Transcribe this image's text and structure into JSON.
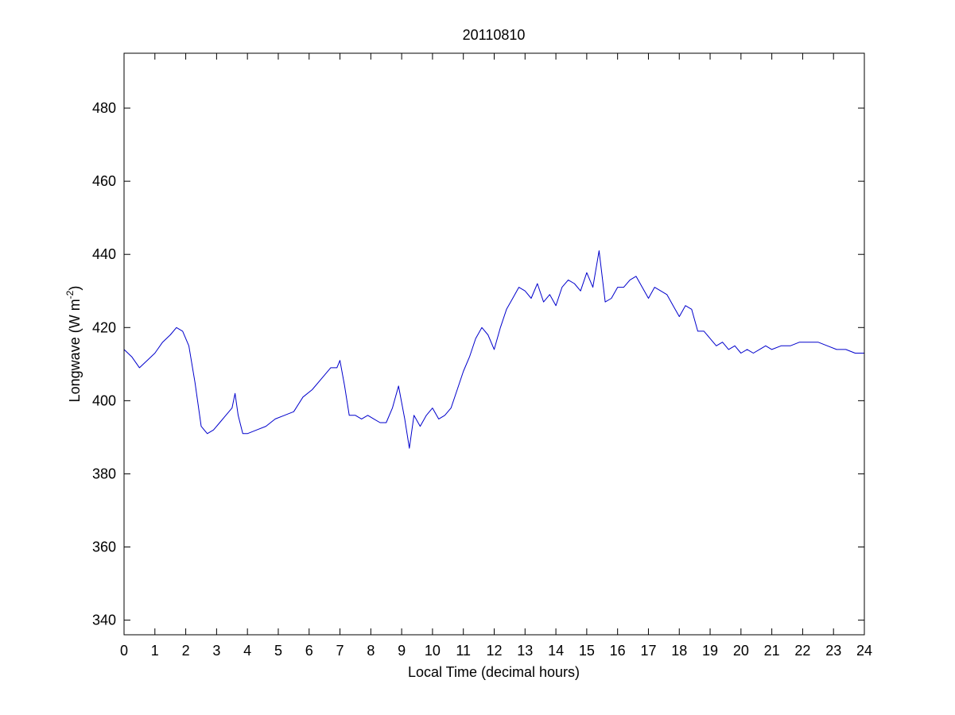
{
  "chart_data": {
    "type": "line",
    "title": "20110810",
    "xlabel": "Local Time (decimal hours)",
    "ylabel": {
      "main": "Longwave (W m",
      "superscript": "-2",
      "close": ")"
    },
    "xlim": [
      0,
      24
    ],
    "ylim": [
      336,
      495
    ],
    "xticks": [
      0,
      1,
      2,
      3,
      4,
      5,
      6,
      7,
      8,
      9,
      10,
      11,
      12,
      13,
      14,
      15,
      16,
      17,
      18,
      19,
      20,
      21,
      22,
      23,
      24
    ],
    "xtick_labels": [
      "0",
      "1",
      "2",
      "3",
      "4",
      "5",
      "6",
      "7",
      "8",
      "9",
      "10",
      "11",
      "12",
      "13",
      "14",
      "15",
      "16",
      "17",
      "18",
      "19",
      "20",
      "21",
      "22",
      "23",
      "24"
    ],
    "yticks": [
      340,
      360,
      380,
      400,
      420,
      440,
      460,
      480
    ],
    "ytick_labels": [
      "340",
      "360",
      "380",
      "400",
      "420",
      "440",
      "460",
      "480"
    ],
    "grid": false,
    "series": [
      {
        "color": "#0000cc",
        "x": [
          0,
          0.25,
          0.5,
          0.75,
          1.0,
          1.25,
          1.5,
          1.7,
          1.9,
          2.1,
          2.3,
          2.5,
          2.7,
          2.9,
          3.1,
          3.3,
          3.5,
          3.6,
          3.7,
          3.85,
          4.0,
          4.3,
          4.6,
          4.9,
          5.2,
          5.5,
          5.8,
          6.1,
          6.4,
          6.7,
          6.9,
          7.0,
          7.15,
          7.3,
          7.5,
          7.7,
          7.9,
          8.1,
          8.3,
          8.5,
          8.7,
          8.9,
          9.1,
          9.25,
          9.4,
          9.6,
          9.8,
          10.0,
          10.2,
          10.4,
          10.6,
          10.8,
          11.0,
          11.2,
          11.4,
          11.6,
          11.8,
          12.0,
          12.2,
          12.4,
          12.6,
          12.8,
          13.0,
          13.2,
          13.4,
          13.6,
          13.8,
          14.0,
          14.2,
          14.4,
          14.6,
          14.8,
          15.0,
          15.2,
          15.4,
          15.6,
          15.8,
          16.0,
          16.2,
          16.4,
          16.6,
          16.8,
          17.0,
          17.2,
          17.4,
          17.6,
          17.8,
          18.0,
          18.2,
          18.4,
          18.6,
          18.8,
          19.0,
          19.2,
          19.4,
          19.6,
          19.8,
          20.0,
          20.2,
          20.4,
          20.6,
          20.8,
          21.0,
          21.3,
          21.6,
          21.9,
          22.2,
          22.5,
          22.8,
          23.1,
          23.4,
          23.7,
          24.0
        ],
        "y": [
          414,
          412,
          409,
          411,
          413,
          416,
          418,
          420,
          419,
          415,
          405,
          393,
          391,
          392,
          394,
          396,
          398,
          402,
          396,
          391,
          391,
          392,
          393,
          395,
          396,
          397,
          401,
          403,
          406,
          409,
          409,
          411,
          404,
          396,
          396,
          395,
          396,
          395,
          394,
          394,
          398,
          404,
          395,
          387,
          396,
          393,
          396,
          398,
          395,
          396,
          398,
          403,
          408,
          412,
          417,
          420,
          418,
          414,
          420,
          425,
          428,
          431,
          430,
          428,
          432,
          427,
          429,
          426,
          431,
          433,
          432,
          430,
          435,
          431,
          441,
          427,
          428,
          431,
          431,
          433,
          434,
          431,
          428,
          431,
          430,
          429,
          426,
          423,
          426,
          425,
          419,
          419,
          417,
          415,
          416,
          414,
          415,
          413,
          414,
          413,
          414,
          415,
          414,
          415,
          415,
          416,
          416,
          416,
          415,
          414,
          414,
          413,
          413
        ]
      }
    ]
  }
}
